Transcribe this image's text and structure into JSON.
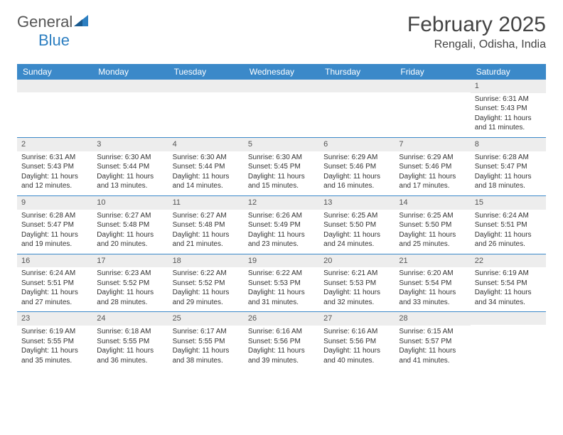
{
  "logo": {
    "text_a": "General",
    "text_b": "Blue"
  },
  "title": "February 2025",
  "location": "Rengali, Odisha, India",
  "colors": {
    "header_bg": "#3b89c9",
    "header_text": "#ffffff",
    "daynum_bg": "#ededed",
    "border": "#3b89c9",
    "text": "#333333",
    "logo_gray": "#555555",
    "logo_blue": "#2d7fc1"
  },
  "day_names": [
    "Sunday",
    "Monday",
    "Tuesday",
    "Wednesday",
    "Thursday",
    "Friday",
    "Saturday"
  ],
  "weeks": [
    [
      {
        "day": "",
        "sunrise": "",
        "sunset": "",
        "daylight": ""
      },
      {
        "day": "",
        "sunrise": "",
        "sunset": "",
        "daylight": ""
      },
      {
        "day": "",
        "sunrise": "",
        "sunset": "",
        "daylight": ""
      },
      {
        "day": "",
        "sunrise": "",
        "sunset": "",
        "daylight": ""
      },
      {
        "day": "",
        "sunrise": "",
        "sunset": "",
        "daylight": ""
      },
      {
        "day": "",
        "sunrise": "",
        "sunset": "",
        "daylight": ""
      },
      {
        "day": "1",
        "sunrise": "Sunrise: 6:31 AM",
        "sunset": "Sunset: 5:43 PM",
        "daylight": "Daylight: 11 hours and 11 minutes."
      }
    ],
    [
      {
        "day": "2",
        "sunrise": "Sunrise: 6:31 AM",
        "sunset": "Sunset: 5:43 PM",
        "daylight": "Daylight: 11 hours and 12 minutes."
      },
      {
        "day": "3",
        "sunrise": "Sunrise: 6:30 AM",
        "sunset": "Sunset: 5:44 PM",
        "daylight": "Daylight: 11 hours and 13 minutes."
      },
      {
        "day": "4",
        "sunrise": "Sunrise: 6:30 AM",
        "sunset": "Sunset: 5:44 PM",
        "daylight": "Daylight: 11 hours and 14 minutes."
      },
      {
        "day": "5",
        "sunrise": "Sunrise: 6:30 AM",
        "sunset": "Sunset: 5:45 PM",
        "daylight": "Daylight: 11 hours and 15 minutes."
      },
      {
        "day": "6",
        "sunrise": "Sunrise: 6:29 AM",
        "sunset": "Sunset: 5:46 PM",
        "daylight": "Daylight: 11 hours and 16 minutes."
      },
      {
        "day": "7",
        "sunrise": "Sunrise: 6:29 AM",
        "sunset": "Sunset: 5:46 PM",
        "daylight": "Daylight: 11 hours and 17 minutes."
      },
      {
        "day": "8",
        "sunrise": "Sunrise: 6:28 AM",
        "sunset": "Sunset: 5:47 PM",
        "daylight": "Daylight: 11 hours and 18 minutes."
      }
    ],
    [
      {
        "day": "9",
        "sunrise": "Sunrise: 6:28 AM",
        "sunset": "Sunset: 5:47 PM",
        "daylight": "Daylight: 11 hours and 19 minutes."
      },
      {
        "day": "10",
        "sunrise": "Sunrise: 6:27 AM",
        "sunset": "Sunset: 5:48 PM",
        "daylight": "Daylight: 11 hours and 20 minutes."
      },
      {
        "day": "11",
        "sunrise": "Sunrise: 6:27 AM",
        "sunset": "Sunset: 5:48 PM",
        "daylight": "Daylight: 11 hours and 21 minutes."
      },
      {
        "day": "12",
        "sunrise": "Sunrise: 6:26 AM",
        "sunset": "Sunset: 5:49 PM",
        "daylight": "Daylight: 11 hours and 23 minutes."
      },
      {
        "day": "13",
        "sunrise": "Sunrise: 6:25 AM",
        "sunset": "Sunset: 5:50 PM",
        "daylight": "Daylight: 11 hours and 24 minutes."
      },
      {
        "day": "14",
        "sunrise": "Sunrise: 6:25 AM",
        "sunset": "Sunset: 5:50 PM",
        "daylight": "Daylight: 11 hours and 25 minutes."
      },
      {
        "day": "15",
        "sunrise": "Sunrise: 6:24 AM",
        "sunset": "Sunset: 5:51 PM",
        "daylight": "Daylight: 11 hours and 26 minutes."
      }
    ],
    [
      {
        "day": "16",
        "sunrise": "Sunrise: 6:24 AM",
        "sunset": "Sunset: 5:51 PM",
        "daylight": "Daylight: 11 hours and 27 minutes."
      },
      {
        "day": "17",
        "sunrise": "Sunrise: 6:23 AM",
        "sunset": "Sunset: 5:52 PM",
        "daylight": "Daylight: 11 hours and 28 minutes."
      },
      {
        "day": "18",
        "sunrise": "Sunrise: 6:22 AM",
        "sunset": "Sunset: 5:52 PM",
        "daylight": "Daylight: 11 hours and 29 minutes."
      },
      {
        "day": "19",
        "sunrise": "Sunrise: 6:22 AM",
        "sunset": "Sunset: 5:53 PM",
        "daylight": "Daylight: 11 hours and 31 minutes."
      },
      {
        "day": "20",
        "sunrise": "Sunrise: 6:21 AM",
        "sunset": "Sunset: 5:53 PM",
        "daylight": "Daylight: 11 hours and 32 minutes."
      },
      {
        "day": "21",
        "sunrise": "Sunrise: 6:20 AM",
        "sunset": "Sunset: 5:54 PM",
        "daylight": "Daylight: 11 hours and 33 minutes."
      },
      {
        "day": "22",
        "sunrise": "Sunrise: 6:19 AM",
        "sunset": "Sunset: 5:54 PM",
        "daylight": "Daylight: 11 hours and 34 minutes."
      }
    ],
    [
      {
        "day": "23",
        "sunrise": "Sunrise: 6:19 AM",
        "sunset": "Sunset: 5:55 PM",
        "daylight": "Daylight: 11 hours and 35 minutes."
      },
      {
        "day": "24",
        "sunrise": "Sunrise: 6:18 AM",
        "sunset": "Sunset: 5:55 PM",
        "daylight": "Daylight: 11 hours and 36 minutes."
      },
      {
        "day": "25",
        "sunrise": "Sunrise: 6:17 AM",
        "sunset": "Sunset: 5:55 PM",
        "daylight": "Daylight: 11 hours and 38 minutes."
      },
      {
        "day": "26",
        "sunrise": "Sunrise: 6:16 AM",
        "sunset": "Sunset: 5:56 PM",
        "daylight": "Daylight: 11 hours and 39 minutes."
      },
      {
        "day": "27",
        "sunrise": "Sunrise: 6:16 AM",
        "sunset": "Sunset: 5:56 PM",
        "daylight": "Daylight: 11 hours and 40 minutes."
      },
      {
        "day": "28",
        "sunrise": "Sunrise: 6:15 AM",
        "sunset": "Sunset: 5:57 PM",
        "daylight": "Daylight: 11 hours and 41 minutes."
      },
      {
        "day": "",
        "sunrise": "",
        "sunset": "",
        "daylight": ""
      }
    ]
  ]
}
